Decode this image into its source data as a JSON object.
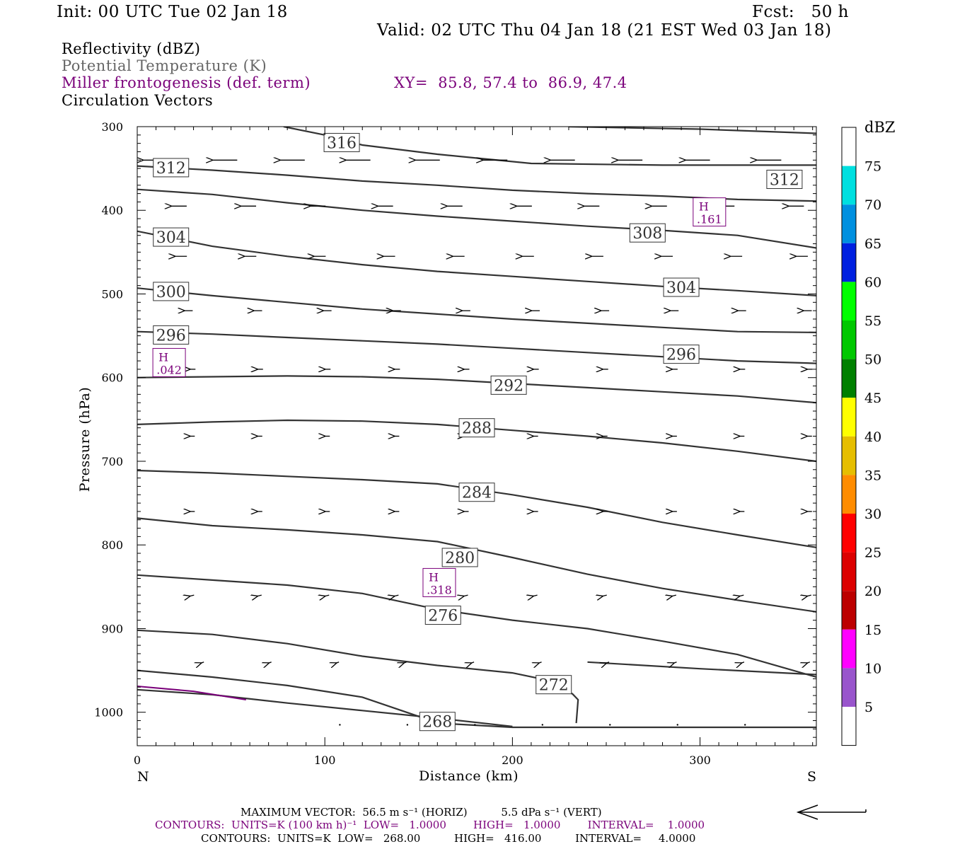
{
  "header": {
    "init": "Init: 00 UTC Tue 02 Jan 18",
    "fcst": "Fcst:   50 h",
    "valid": "Valid: 02 UTC Thu 04 Jan 18 (21 EST Wed 03 Jan 18)"
  },
  "fields": {
    "reflectivity": "Reflectivity (dBZ)",
    "theta": "Potential Temperature (K)",
    "miller": "Miller frontogenesis (def. term)",
    "xy": "XY=  85.8, 57.4 to  86.9, 47.4",
    "circulation": "Circulation Vectors"
  },
  "colors": {
    "miller": "#7a007a",
    "theta_line": "#333333",
    "theta_text": "#666666"
  },
  "chart_data": {
    "type": "line",
    "xlabel": "Distance (km)",
    "ylabel": "Pressure (hPa)",
    "xlim": [
      0,
      362
    ],
    "ylim": [
      300,
      1040
    ],
    "y_scale": "linear (inverted: pressure increases downward)",
    "x_ticks": [
      "0",
      "100",
      "200",
      "300"
    ],
    "y_ticks": [
      "300",
      "400",
      "500",
      "600",
      "700",
      "800",
      "900",
      "1000"
    ],
    "x_end_labels": {
      "left": "N",
      "right": "S"
    },
    "theta_contours": [
      {
        "value": 316,
        "label": "316",
        "points": [
          [
            78,
            300
          ],
          [
            100,
            310
          ],
          [
            120,
            322
          ],
          [
            160,
            333
          ],
          [
            210,
            344
          ],
          [
            280,
            346
          ],
          [
            362,
            346
          ]
        ],
        "labels_at": [
          [
            109,
            319
          ]
        ]
      },
      {
        "value": 316,
        "label": "316",
        "points": [
          [
            230,
            300
          ],
          [
            300,
            303
          ],
          [
            362,
            308
          ]
        ],
        "labels_at": []
      },
      {
        "value": 312,
        "label": "312",
        "points": [
          [
            0,
            347
          ],
          [
            40,
            352
          ],
          [
            80,
            358
          ],
          [
            120,
            365
          ],
          [
            160,
            370
          ],
          [
            200,
            376
          ],
          [
            240,
            380
          ],
          [
            280,
            383
          ],
          [
            320,
            387
          ],
          [
            362,
            389
          ]
        ],
        "labels_at": [
          [
            18,
            349
          ],
          [
            345,
            363
          ]
        ]
      },
      {
        "value": 308,
        "label": "308",
        "points": [
          [
            0,
            375
          ],
          [
            40,
            381
          ],
          [
            80,
            391
          ],
          [
            120,
            400
          ],
          [
            160,
            407
          ],
          [
            200,
            413
          ],
          [
            240,
            419
          ],
          [
            280,
            424
          ],
          [
            320,
            430
          ],
          [
            362,
            445
          ]
        ],
        "labels_at": [
          [
            272,
            427
          ]
        ]
      },
      {
        "value": 304,
        "label": "304",
        "points": [
          [
            0,
            425
          ],
          [
            40,
            443
          ],
          [
            80,
            455
          ],
          [
            120,
            465
          ],
          [
            160,
            473
          ],
          [
            200,
            479
          ],
          [
            240,
            485
          ],
          [
            280,
            491
          ],
          [
            320,
            496
          ],
          [
            362,
            502
          ]
        ],
        "labels_at": [
          [
            18,
            432
          ],
          [
            290,
            492
          ]
        ]
      },
      {
        "value": 300,
        "label": "300",
        "points": [
          [
            0,
            493
          ],
          [
            40,
            502
          ],
          [
            80,
            510
          ],
          [
            120,
            518
          ],
          [
            160,
            524
          ],
          [
            200,
            530
          ],
          [
            240,
            535
          ],
          [
            280,
            540
          ],
          [
            320,
            545
          ],
          [
            362,
            546
          ]
        ],
        "labels_at": [
          [
            18,
            497
          ]
        ]
      },
      {
        "value": 296,
        "label": "296",
        "points": [
          [
            0,
            545
          ],
          [
            40,
            548
          ],
          [
            80,
            552
          ],
          [
            120,
            556
          ],
          [
            160,
            560
          ],
          [
            200,
            565
          ],
          [
            240,
            570
          ],
          [
            280,
            575
          ],
          [
            320,
            580
          ],
          [
            362,
            583
          ]
        ],
        "labels_at": [
          [
            18,
            549
          ],
          [
            290,
            572
          ]
        ]
      },
      {
        "value": 292,
        "label": "292",
        "points": [
          [
            0,
            600
          ],
          [
            40,
            599
          ],
          [
            80,
            598
          ],
          [
            120,
            599
          ],
          [
            160,
            602
          ],
          [
            200,
            607
          ],
          [
            240,
            612
          ],
          [
            280,
            617
          ],
          [
            320,
            622
          ],
          [
            362,
            630
          ]
        ],
        "labels_at": [
          [
            198,
            609
          ]
        ]
      },
      {
        "value": 288,
        "label": "288",
        "points": [
          [
            0,
            656
          ],
          [
            40,
            653
          ],
          [
            80,
            651
          ],
          [
            120,
            652
          ],
          [
            160,
            656
          ],
          [
            200,
            663
          ],
          [
            240,
            670
          ],
          [
            280,
            678
          ],
          [
            320,
            688
          ],
          [
            362,
            700
          ]
        ],
        "labels_at": [
          [
            181,
            660
          ]
        ]
      },
      {
        "value": 284,
        "label": "284",
        "points": [
          [
            0,
            711
          ],
          [
            40,
            714
          ],
          [
            80,
            718
          ],
          [
            120,
            722
          ],
          [
            160,
            727
          ],
          [
            200,
            740
          ],
          [
            240,
            755
          ],
          [
            280,
            773
          ],
          [
            320,
            788
          ],
          [
            362,
            803
          ]
        ],
        "labels_at": [
          [
            181,
            737
          ]
        ]
      },
      {
        "value": 280,
        "label": "280",
        "points": [
          [
            0,
            768
          ],
          [
            40,
            777
          ],
          [
            80,
            782
          ],
          [
            120,
            788
          ],
          [
            160,
            796
          ],
          [
            200,
            815
          ],
          [
            240,
            835
          ],
          [
            280,
            852
          ],
          [
            320,
            866
          ],
          [
            362,
            880
          ]
        ],
        "labels_at": [
          [
            172,
            815
          ]
        ]
      },
      {
        "value": 276,
        "label": "276",
        "points": [
          [
            0,
            836
          ],
          [
            40,
            842
          ],
          [
            80,
            848
          ],
          [
            120,
            858
          ],
          [
            160,
            877
          ],
          [
            200,
            890
          ],
          [
            240,
            900
          ],
          [
            280,
            915
          ],
          [
            320,
            931
          ],
          [
            362,
            958
          ]
        ],
        "labels_at": [
          [
            163,
            884
          ]
        ]
      },
      {
        "value": 272,
        "label": "272",
        "points": [
          [
            0,
            902
          ],
          [
            40,
            907
          ],
          [
            80,
            918
          ],
          [
            120,
            933
          ],
          [
            160,
            944
          ],
          [
            200,
            953
          ],
          [
            215,
            960
          ],
          [
            232,
            978
          ],
          [
            235,
            985
          ],
          [
            234,
            1013
          ]
        ],
        "labels_at": [
          [
            222,
            967
          ]
        ]
      },
      {
        "value": 272,
        "label": "272",
        "points": [
          [
            240,
            940
          ],
          [
            300,
            948
          ],
          [
            362,
            955
          ]
        ],
        "labels_at": []
      },
      {
        "value": 268,
        "label": "268",
        "points": [
          [
            0,
            950
          ],
          [
            40,
            958
          ],
          [
            80,
            968
          ],
          [
            120,
            982
          ],
          [
            150,
            1005
          ],
          [
            160,
            1013
          ],
          [
            200,
            1018
          ],
          [
            280,
            1018
          ],
          [
            362,
            1018
          ]
        ],
        "labels_at": [
          [
            160,
            1011
          ]
        ]
      },
      {
        "value": 268,
        "label": "268",
        "points": [
          [
            0,
            973
          ],
          [
            40,
            979
          ],
          [
            80,
            989
          ],
          [
            120,
            998
          ],
          [
            160,
            1007
          ],
          [
            200,
            1017
          ]
        ],
        "labels_at": []
      }
    ],
    "miller_contours": [
      {
        "label": "",
        "points": [
          [
            0,
            969
          ],
          [
            30,
            975
          ],
          [
            58,
            985
          ]
        ]
      }
    ],
    "extrema": [
      {
        "label": "H",
        "value": ".042",
        "x": 17,
        "y": 582
      },
      {
        "label": "H",
        "value": ".318",
        "x": 161,
        "y": 845
      },
      {
        "label": "H",
        "value": ".161",
        "x": 305,
        "y": 402
      }
    ],
    "vectors_note": "Circulation vectors point toward N (left); length decreases with depth",
    "vector_rows": [
      {
        "p": 340,
        "x": [
          3,
          40,
          76,
          111,
          148,
          184,
          220,
          256,
          292,
          330
        ],
        "len": 35
      },
      {
        "p": 395,
        "x": [
          18,
          55,
          92,
          128,
          165,
          202,
          238,
          274,
          310,
          347
        ],
        "len": 22
      },
      {
        "p": 455,
        "x": [
          20,
          57,
          94,
          131,
          168,
          205,
          242,
          279,
          316,
          351
        ],
        "len": 17
      },
      {
        "p": 520,
        "x": [
          25,
          62,
          99,
          136,
          173,
          210,
          247,
          284,
          320,
          355
        ],
        "len": 12
      },
      {
        "p": 590,
        "x": [
          28,
          64,
          100,
          137,
          174,
          211,
          248,
          285,
          321,
          357
        ],
        "len": 8
      },
      {
        "p": 670,
        "x": [
          28,
          64,
          100,
          137,
          174,
          211,
          248,
          285,
          321,
          357
        ],
        "len": 7
      },
      {
        "p": 760,
        "x": [
          28,
          64,
          100,
          137,
          174,
          211,
          248,
          285,
          321,
          357
        ],
        "len": 7
      },
      {
        "p": 860,
        "x": [
          28,
          64,
          100,
          137,
          174,
          211,
          248,
          285,
          321,
          357
        ],
        "len": 6
      },
      {
        "p": 940,
        "x": [
          34,
          70,
          106,
          142,
          178,
          214,
          250,
          286,
          322,
          357
        ],
        "len": 4
      },
      {
        "p": 1015,
        "x": [
          108,
          144,
          180,
          216,
          252,
          288,
          324
        ],
        "len": 1
      }
    ]
  },
  "colorbar": {
    "unit": "dBZ",
    "labels": [
      "5",
      "10",
      "15",
      "20",
      "25",
      "30",
      "35",
      "40",
      "45",
      "50",
      "55",
      "60",
      "65",
      "70",
      "75"
    ],
    "colors": [
      "#ffffff",
      "#00e0e0",
      "#0090e0",
      "#0020e0",
      "#00ff00",
      "#00c800",
      "#008000",
      "#ffff00",
      "#e6be00",
      "#ff8c00",
      "#ff0000",
      "#dc0000",
      "#bc0000",
      "#ff00ff",
      "#9955cc",
      "#ffffff"
    ]
  },
  "footer": {
    "max_vector": "MAXIMUM VECTOR:  56.5 m s⁻¹ (HORIZ)          5.5 dPa s⁻¹ (VERT)",
    "miller_contours": "CONTOURS:  UNITS=K (100 km h)⁻¹  LOW=   1.0000        HIGH=   1.0000        INTERVAL=    1.0000",
    "theta_contours": "CONTOURS:  UNITS=K  LOW=   268.00          HIGH=   416.00          INTERVAL=     4.0000"
  }
}
